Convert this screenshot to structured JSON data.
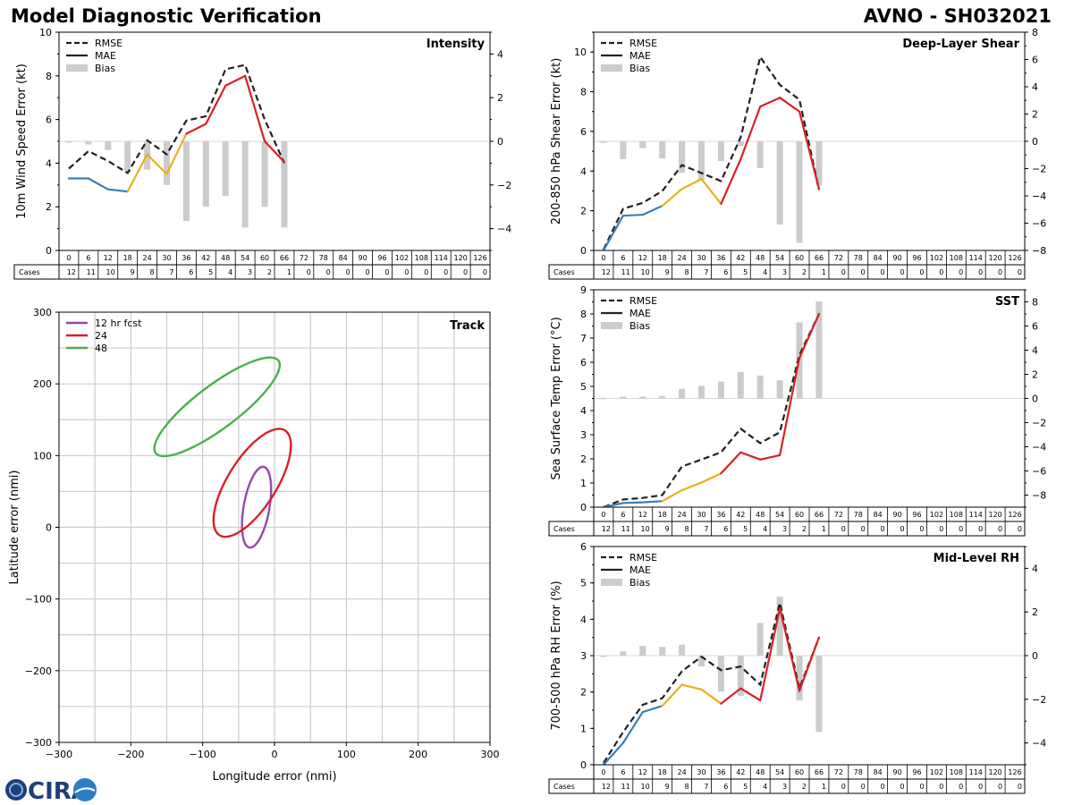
{
  "header": {
    "title": "Model Diagnostic Verification",
    "subtitle": "AVNO - SH032021"
  },
  "logo": {
    "text": "CIRA"
  },
  "colors": {
    "early": "#3a7fb8",
    "mid": "#e6b120",
    "late": "#d92028",
    "rmse": "#222222",
    "bias": "#cccccc",
    "grid": "#cccccc"
  },
  "table": {
    "hours": [
      0,
      6,
      12,
      18,
      24,
      30,
      36,
      42,
      48,
      54,
      60,
      66,
      72,
      78,
      84,
      90,
      96,
      102,
      108,
      114,
      120,
      126
    ],
    "cases": [
      12,
      11,
      10,
      9,
      8,
      7,
      6,
      5,
      4,
      3,
      2,
      1,
      0,
      0,
      0,
      0,
      0,
      0,
      0,
      0,
      0,
      0
    ],
    "cases_label": "Cases"
  },
  "legend_err": [
    "RMSE",
    "MAE",
    "Bias"
  ],
  "chart_data": [
    {
      "id": "intensity",
      "type": "line",
      "title": "Intensity",
      "ylabel": "10m Wind Speed Error (kt)",
      "ylim": [
        0,
        10
      ],
      "yticks": [
        0,
        2,
        4,
        6,
        8,
        10
      ],
      "y2lim": [
        -5,
        5
      ],
      "y2ticks": [
        -4,
        -2,
        0,
        2,
        4
      ],
      "x": [
        0,
        6,
        12,
        18,
        24,
        30,
        36,
        42,
        48,
        54,
        60,
        66
      ],
      "rmse": [
        3.75,
        4.55,
        4.1,
        3.55,
        5.05,
        4.4,
        5.95,
        6.15,
        8.3,
        8.5,
        6.0,
        4.0
      ],
      "mae": [
        3.3,
        3.3,
        2.8,
        2.7,
        4.4,
        3.5,
        5.35,
        5.8,
        7.55,
        8.0,
        5.0,
        4.05
      ],
      "bias": [
        -0.05,
        -0.15,
        -0.4,
        -1.45,
        -1.3,
        -2.0,
        -3.65,
        -3.0,
        -2.5,
        -3.95,
        -3.0,
        -3.95
      ]
    },
    {
      "id": "shear",
      "type": "line",
      "title": "Deep-Layer Shear",
      "ylabel": "200-850 hPa Shear Error (kt)",
      "ylim": [
        0,
        11
      ],
      "yticks": [
        0,
        2,
        4,
        6,
        8,
        10
      ],
      "y2lim": [
        -8,
        8
      ],
      "y2ticks": [
        -8,
        -6,
        -4,
        -2,
        0,
        2,
        4,
        6,
        8
      ],
      "x": [
        0,
        6,
        12,
        18,
        24,
        30,
        36,
        42,
        48,
        54,
        60,
        66
      ],
      "rmse": [
        0.05,
        2.1,
        2.4,
        3.0,
        4.3,
        3.9,
        3.5,
        5.7,
        9.75,
        8.35,
        7.6,
        3.05
      ],
      "mae": [
        0.0,
        1.75,
        1.8,
        2.25,
        3.1,
        3.6,
        2.35,
        4.6,
        7.25,
        7.7,
        7.0,
        3.1
      ],
      "bias": [
        -0.1,
        -1.3,
        -0.5,
        -1.25,
        -2.3,
        -2.85,
        -1.45,
        -0.35,
        -1.95,
        -6.1,
        -7.45,
        -3.25
      ]
    },
    {
      "id": "sst",
      "type": "line",
      "title": "SST",
      "ylabel": "Sea Surface Temp Error (°C)",
      "ylim": [
        0,
        9
      ],
      "yticks": [
        0,
        1,
        2,
        3,
        4,
        5,
        6,
        7,
        8,
        9
      ],
      "y2lim": [
        -9,
        9
      ],
      "y2ticks": [
        -8,
        -6,
        -4,
        -2,
        0,
        2,
        4,
        6,
        8
      ],
      "x": [
        0,
        6,
        12,
        18,
        24,
        30,
        36,
        42,
        48,
        54,
        60,
        66
      ],
      "rmse": [
        0.0,
        0.32,
        0.38,
        0.5,
        1.68,
        1.97,
        2.27,
        3.25,
        2.65,
        3.1,
        6.3,
        8.0
      ],
      "mae": [
        0.0,
        0.17,
        0.2,
        0.25,
        0.7,
        1.02,
        1.4,
        2.27,
        1.97,
        2.15,
        6.18,
        8.0
      ],
      "bias": [
        0.05,
        0.15,
        0.15,
        0.2,
        0.8,
        1.05,
        1.4,
        2.2,
        1.9,
        1.5,
        6.3,
        8.05
      ]
    },
    {
      "id": "rh",
      "type": "line",
      "title": "Mid-Level RH",
      "ylabel": "700-500 hPa RH Error (%)",
      "ylim": [
        0,
        6
      ],
      "yticks": [
        0,
        1,
        2,
        3,
        4,
        5,
        6
      ],
      "y2lim": [
        -5,
        5
      ],
      "y2ticks": [
        -4,
        -2,
        0,
        2,
        4
      ],
      "x": [
        0,
        6,
        12,
        18,
        24,
        30,
        36,
        42,
        48,
        54,
        60,
        66
      ],
      "rmse": [
        0.05,
        0.9,
        1.65,
        1.83,
        2.57,
        2.97,
        2.6,
        2.7,
        2.2,
        4.45,
        2.1,
        3.5
      ],
      "mae": [
        0.0,
        0.6,
        1.45,
        1.62,
        2.2,
        2.07,
        1.68,
        2.1,
        1.77,
        4.3,
        2.03,
        3.5
      ],
      "bias": [
        0.0,
        0.2,
        0.45,
        0.4,
        0.5,
        -0.5,
        -1.65,
        -1.85,
        1.5,
        2.7,
        -2.05,
        -3.5
      ]
    },
    {
      "id": "track",
      "type": "scatter",
      "title": "Track",
      "xlabel": "Longitude error (nmi)",
      "ylabel": "Latitude error (nmi)",
      "xlim": [
        -300,
        300
      ],
      "ylim": [
        -300,
        300
      ],
      "xticks": [
        -300,
        -200,
        -100,
        0,
        100,
        200,
        300
      ],
      "yticks": [
        -300,
        -200,
        -100,
        0,
        100,
        200,
        300
      ],
      "ellipses": [
        {
          "label": "12 hr fcst",
          "color": "#944ba6",
          "cx": -25,
          "cy": 28,
          "a": 57,
          "b": 18,
          "angle": 80
        },
        {
          "label": "24",
          "color": "#d92028",
          "cx": -31,
          "cy": 62,
          "a": 86,
          "b": 34,
          "angle": 58
        },
        {
          "label": "48",
          "color": "#4caf50",
          "cx": -80,
          "cy": 168,
          "a": 107,
          "b": 30,
          "angle": 37
        }
      ]
    }
  ]
}
